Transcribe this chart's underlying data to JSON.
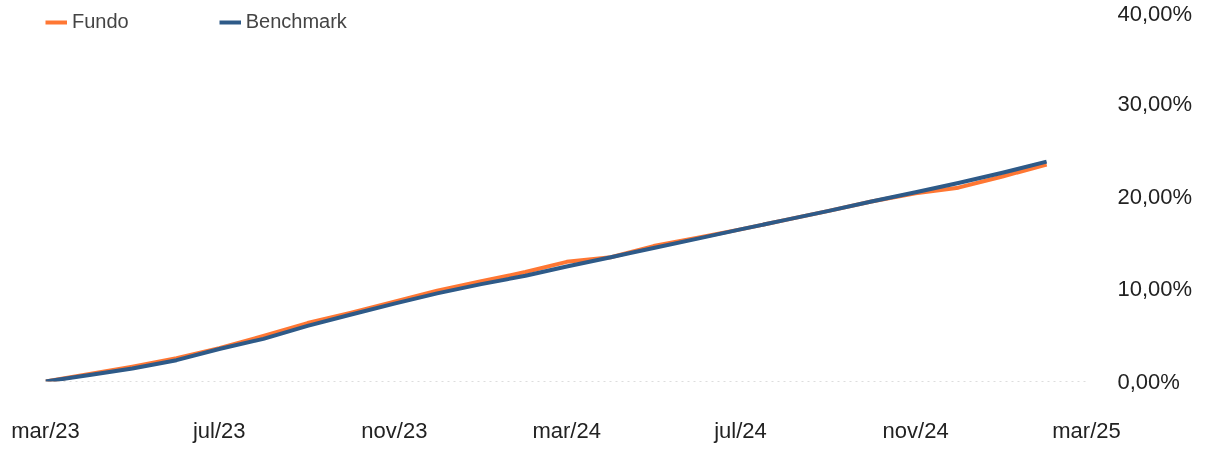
{
  "chart_data": {
    "type": "line",
    "x": [
      "2023-03-01",
      "2023-04-01",
      "2023-05-01",
      "2023-06-01",
      "2023-07-01",
      "2023-08-01",
      "2023-09-01",
      "2023-10-01",
      "2023-11-01",
      "2023-12-01",
      "2024-01-01",
      "2024-02-01",
      "2024-03-01",
      "2024-04-01",
      "2024-05-01",
      "2024-06-01",
      "2024-07-01",
      "2024-08-01",
      "2024-09-01",
      "2024-10-01",
      "2024-11-01",
      "2024-12-01",
      "2025-01-01",
      "2025-02-01"
    ],
    "series": [
      {
        "name": "Fundo",
        "color": "#ff7733",
        "values": [
          0,
          0.8,
          1.6,
          2.5,
          3.6,
          4.9,
          6.3,
          7.4,
          8.6,
          9.8,
          10.8,
          11.8,
          12.9,
          13.4,
          14.6,
          15.5,
          16.4,
          17.4,
          18.4,
          19.4,
          20.3,
          20.9,
          22.1,
          23.4
        ]
      },
      {
        "name": "Benchmark",
        "color": "#2e5a88",
        "values": [
          0,
          0.7,
          1.4,
          2.3,
          3.5,
          4.6,
          6.0,
          7.2,
          8.4,
          9.5,
          10.5,
          11.4,
          12.4,
          13.4,
          14.4,
          15.4,
          16.4,
          17.4,
          18.4,
          19.4,
          20.4,
          21.4,
          22.5,
          23.7
        ]
      }
    ],
    "xlim": [
      "2023-03-01",
      "2025-03-01"
    ],
    "xticks": [
      {
        "value": "2023-03-01",
        "label": "mar/23"
      },
      {
        "value": "2023-07-01",
        "label": "jul/23"
      },
      {
        "value": "2023-11-01",
        "label": "nov/23"
      },
      {
        "value": "2024-03-01",
        "label": "mar/24"
      },
      {
        "value": "2024-07-01",
        "label": "jul/24"
      },
      {
        "value": "2024-11-01",
        "label": "nov/24"
      },
      {
        "value": "2025-03-01",
        "label": "mar/25"
      }
    ],
    "ylim": [
      0,
      40
    ],
    "yticks": [
      {
        "value": 0,
        "label": "0,00%"
      },
      {
        "value": 10,
        "label": "10,00%"
      },
      {
        "value": 20,
        "label": "20,00%"
      },
      {
        "value": 30,
        "label": "30,00%"
      },
      {
        "value": 40,
        "label": "40,00%"
      }
    ],
    "ref_lines": [
      {
        "axis": "y",
        "value": 0,
        "color": "#bbbbbb",
        "line_style": "dotted"
      }
    ],
    "grid": false,
    "legend": "top left",
    "marker": "none",
    "line_style": "solid"
  }
}
